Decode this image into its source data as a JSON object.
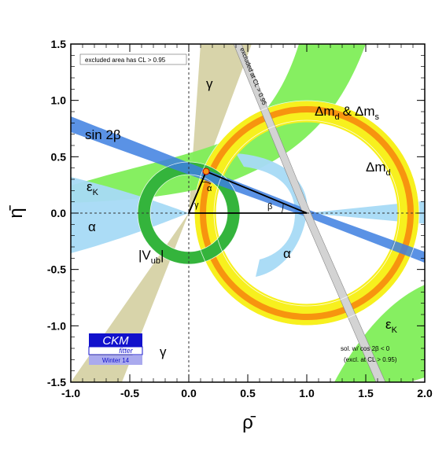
{
  "chart_data": {
    "type": "scatter",
    "xlabel": "ρ̄",
    "ylabel": "η̄",
    "xlim": [
      -1.0,
      2.0
    ],
    "ylim": [
      -1.5,
      1.5
    ],
    "xticks": [
      "-1.0",
      "-0.5",
      "0.0",
      "0.5",
      "1.0",
      "1.5",
      "2.0"
    ],
    "xtick_values": [
      -1.0,
      -0.5,
      0.0,
      0.5,
      1.0,
      1.5,
      2.0
    ],
    "yticks": [
      "1.5",
      "1.0",
      "0.5",
      "0.0",
      "-0.5",
      "-1.0",
      "-1.5"
    ],
    "ytick_values": [
      1.5,
      1.0,
      0.5,
      0.0,
      -0.5,
      -1.0,
      -1.5
    ],
    "grid": false,
    "apex": {
      "rho": 0.15,
      "eta": 0.35
    },
    "constraints": [
      {
        "id": "dmd",
        "label": "Δm_d",
        "color": "#f7f01e",
        "shape": "ring",
        "center": [
          1.0,
          0.0
        ],
        "r_inner": 0.8,
        "r_outer": 0.98
      },
      {
        "id": "dmds",
        "label": "Δm_d & Δm_s",
        "color": "#f7940f",
        "shape": "ring",
        "center": [
          1.0,
          0.0
        ],
        "r_inner": 0.86,
        "r_outer": 0.91
      },
      {
        "id": "vub",
        "label": "|V_ub|",
        "color": "#34b43c",
        "shape": "ring",
        "center": [
          0.0,
          0.0
        ],
        "r_inner": 0.31,
        "r_outer": 0.45
      },
      {
        "id": "sin2b",
        "label": "sin 2β",
        "color": "#3d7fe0",
        "shape": "wedge",
        "center": [
          1.0,
          0.0
        ],
        "angle_deg": 157.5,
        "half_width_deg": 1.2
      },
      {
        "id": "sin2b_alt",
        "label": "sol. w/ cos 2β < 0",
        "color": "#a8a8a8",
        "shape": "wedge",
        "center": [
          1.0,
          0.0
        ],
        "angle_deg": 112,
        "half_width_deg": 1.2
      },
      {
        "id": "gamma",
        "label": "γ",
        "color": "#d8d4aa",
        "shape": "wedge",
        "center": [
          0.0,
          0.0
        ],
        "angle_deg": 67,
        "half_width_deg": 9
      },
      {
        "id": "epsK",
        "label": "ε_K",
        "color": "#80ee58",
        "shape": "hyperbola"
      },
      {
        "id": "alpha",
        "label": "α",
        "color": "#a6daf5",
        "shape": "band"
      }
    ],
    "annotations": [
      {
        "text": "excluded area has CL > 0.95",
        "position": "top-left"
      },
      {
        "text": "excluded at CL > 0.95",
        "position": "on-grey-band"
      },
      {
        "text": "sol. w/ cos 2β < 0",
        "position": "bottom-right"
      },
      {
        "text": "(excl. at CL > 0.95)",
        "position": "bottom-right"
      }
    ],
    "triangle_labels": [
      "α",
      "β",
      "γ"
    ],
    "band_labels": [
      "γ",
      "Δm",
      "d",
      "&",
      "Δm",
      "s",
      "Δm",
      "d",
      "sin 2β",
      "ε",
      "K",
      "α",
      "|V",
      "ub",
      "|",
      "α",
      "ε",
      "K",
      "γ"
    ]
  },
  "logo": {
    "title": "CKM",
    "subtitle": "fitter",
    "edition": "Winter 14"
  },
  "colors": {
    "yellow": "#f7f01e",
    "orange": "#f7940f",
    "green": "#34b43c",
    "light_green": "#80ee58",
    "light_blue": "#a6daf5",
    "blue": "#3d7fe0",
    "tan": "#d8d4aa",
    "grey": "#a8a8a8",
    "logo_blue": "#1111cc"
  }
}
